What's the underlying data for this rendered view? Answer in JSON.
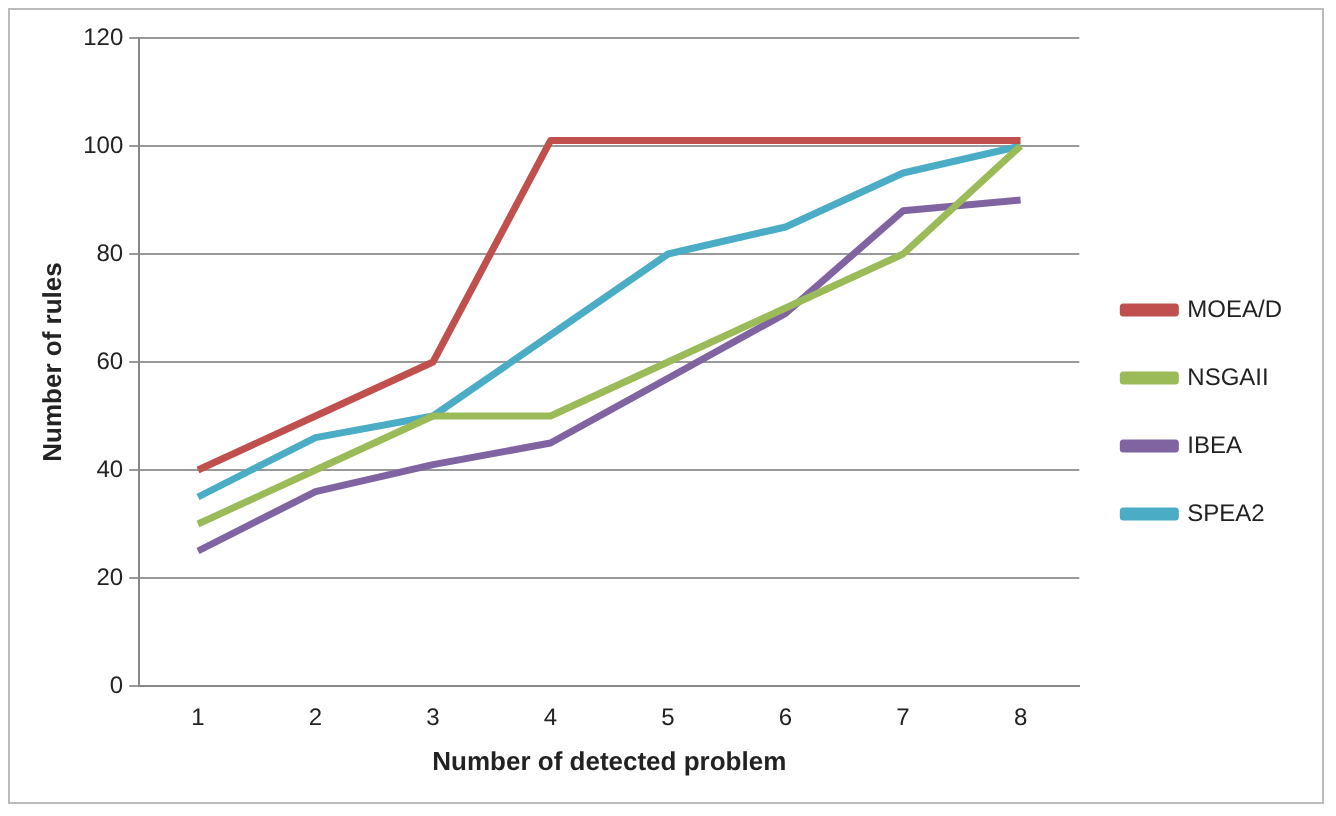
{
  "chart_data": {
    "type": "line",
    "xlabel": "Number of detected problem",
    "ylabel": "Number of rules",
    "categories": [
      "1",
      "2",
      "3",
      "4",
      "5",
      "6",
      "7",
      "8"
    ],
    "series": [
      {
        "name": "MOEA/D",
        "color": "#c0504d",
        "values": [
          40,
          50,
          60,
          101,
          101,
          101,
          101,
          101
        ]
      },
      {
        "name": "NSGAII",
        "color": "#9bbb59",
        "values": [
          30,
          40,
          50,
          50,
          60,
          70,
          80,
          100
        ]
      },
      {
        "name": "IBEA",
        "color": "#8064a2",
        "values": [
          25,
          36,
          41,
          45,
          57,
          69,
          88,
          90
        ]
      },
      {
        "name": "SPEA2",
        "color": "#4bacc6",
        "values": [
          35,
          46,
          50,
          65,
          80,
          85,
          95,
          100
        ]
      }
    ],
    "ylim": [
      0,
      120
    ],
    "yticks": [
      0,
      20,
      40,
      60,
      80,
      100,
      120
    ],
    "grid": "y",
    "legend": "right",
    "marker": "none",
    "line_style": "solid"
  }
}
